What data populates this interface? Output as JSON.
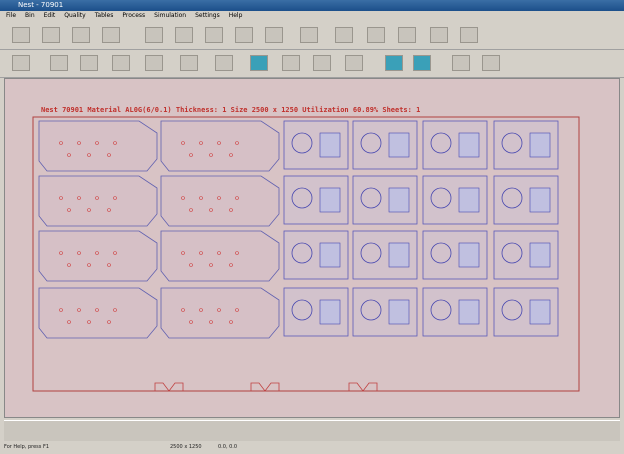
{
  "window": {
    "title": "Nest - 70901"
  },
  "menu": [
    "File",
    "Bin",
    "Edit",
    "Quality",
    "Tables",
    "Process",
    "Simulation",
    "Settings",
    "Help"
  ],
  "sheet_info": "Nest 70901  Material AL0G(6/0.1)  Thickness: 1  Size 2500 x 1250  Utilization 60.89%  Sheets: 1",
  "status": {
    "help": "For Help, press F1",
    "size": "2500 x 1250",
    "coords": "0.0, 0.0"
  }
}
